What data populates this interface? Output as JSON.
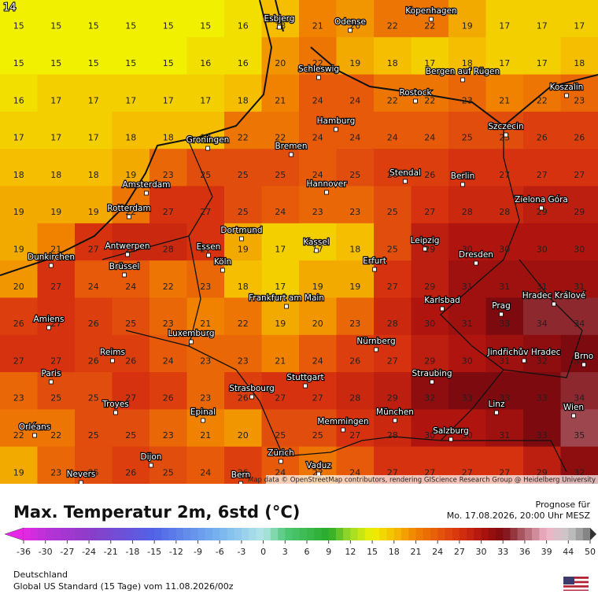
{
  "map": {
    "corner": "14",
    "grid": [
      [
        15,
        15,
        15,
        15,
        15,
        15,
        16,
        18,
        21,
        20,
        22,
        22,
        19,
        17,
        17,
        17
      ],
      [
        15,
        15,
        15,
        15,
        15,
        16,
        16,
        20,
        22,
        19,
        18,
        17,
        18,
        17,
        17,
        18
      ],
      [
        16,
        17,
        17,
        17,
        17,
        17,
        18,
        21,
        24,
        24,
        22,
        22,
        23,
        21,
        22,
        23
      ],
      [
        17,
        17,
        17,
        18,
        18,
        18,
        22,
        22,
        24,
        24,
        24,
        24,
        25,
        25,
        26,
        26
      ],
      [
        18,
        18,
        18,
        19,
        23,
        25,
        25,
        25,
        24,
        25,
        26,
        26,
        27,
        27,
        27,
        27
      ],
      [
        19,
        19,
        19,
        22,
        27,
        27,
        25,
        24,
        23,
        23,
        25,
        27,
        28,
        28,
        29,
        29
      ],
      [
        19,
        21,
        27,
        28,
        28,
        27,
        19,
        17,
        17,
        18,
        25,
        29,
        30,
        30,
        30,
        30
      ],
      [
        20,
        27,
        24,
        24,
        22,
        23,
        18,
        17,
        19,
        19,
        27,
        29,
        31,
        31,
        31,
        31
      ],
      [
        26,
        27,
        26,
        25,
        23,
        21,
        22,
        19,
        20,
        23,
        28,
        30,
        31,
        33,
        34,
        34
      ],
      [
        27,
        27,
        26,
        26,
        24,
        23,
        23,
        21,
        24,
        26,
        27,
        29,
        30,
        31,
        32,
        33
      ],
      [
        23,
        25,
        25,
        27,
        26,
        23,
        26,
        27,
        27,
        28,
        29,
        32,
        33,
        33,
        33,
        34
      ],
      [
        22,
        22,
        25,
        25,
        23,
        21,
        20,
        25,
        25,
        27,
        28,
        30,
        30,
        31,
        33,
        35
      ],
      [
        19,
        23,
        25,
        26,
        25,
        24,
        26,
        24,
        22,
        24,
        27,
        27,
        27,
        27,
        29,
        32
      ]
    ],
    "cities": [
      "Kopenhagen",
      "Esbjerg",
      "Odense",
      "Schleswig",
      "Bergen auf Rügen",
      "Rostock",
      "Koszalin",
      "Hamburg",
      "Szczecin",
      "Groningen",
      "Bremen",
      "Amsterdam",
      "Hannover",
      "Stendal",
      "Berlin",
      "Zielona Góra",
      "Rotterdam",
      "Dortmund",
      "Kassel",
      "Leipzig",
      "Antwerpen",
      "Essen",
      "Dunkirchen",
      "Köln",
      "Erfurt",
      "Dresden",
      "Brüssel",
      "Frankfurt am Main",
      "Karlsbad",
      "Hradec Králové",
      "Prag",
      "Amiens",
      "Luxemburg",
      "Nürnberg",
      "Reims",
      "Jindřichův Hradec",
      "Brno",
      "Paris",
      "Straubing",
      "Strasbourg",
      "Stuttgart",
      "Troyes",
      "Epinal",
      "Linz",
      "Wien",
      "München",
      "Memmingen",
      "Salzburg",
      "Orléans",
      "Dijon",
      "Zürich",
      "Vaduz",
      "Nevers",
      "Bern"
    ],
    "attribution": "Map data © OpenStreetMap contributors, rendering GIScience Research Group @ Heidelberg University"
  },
  "legend": {
    "title": "Max. Temperatur 2m, 6std (°C)",
    "forecast_label": "Prognose für",
    "forecast_time": "Mo. 17.08.2026, 20:00 Uhr MESZ",
    "ticks": [
      -36,
      -30,
      -27,
      -24,
      -21,
      -18,
      -15,
      -12,
      -9,
      -6,
      -3,
      0,
      3,
      6,
      9,
      12,
      15,
      18,
      21,
      24,
      27,
      30,
      33,
      36,
      39,
      44,
      50
    ]
  },
  "footer": {
    "region": "Deutschland",
    "model": "Global US Standard (15 Tage) vom  11.08.2026/00z"
  }
}
